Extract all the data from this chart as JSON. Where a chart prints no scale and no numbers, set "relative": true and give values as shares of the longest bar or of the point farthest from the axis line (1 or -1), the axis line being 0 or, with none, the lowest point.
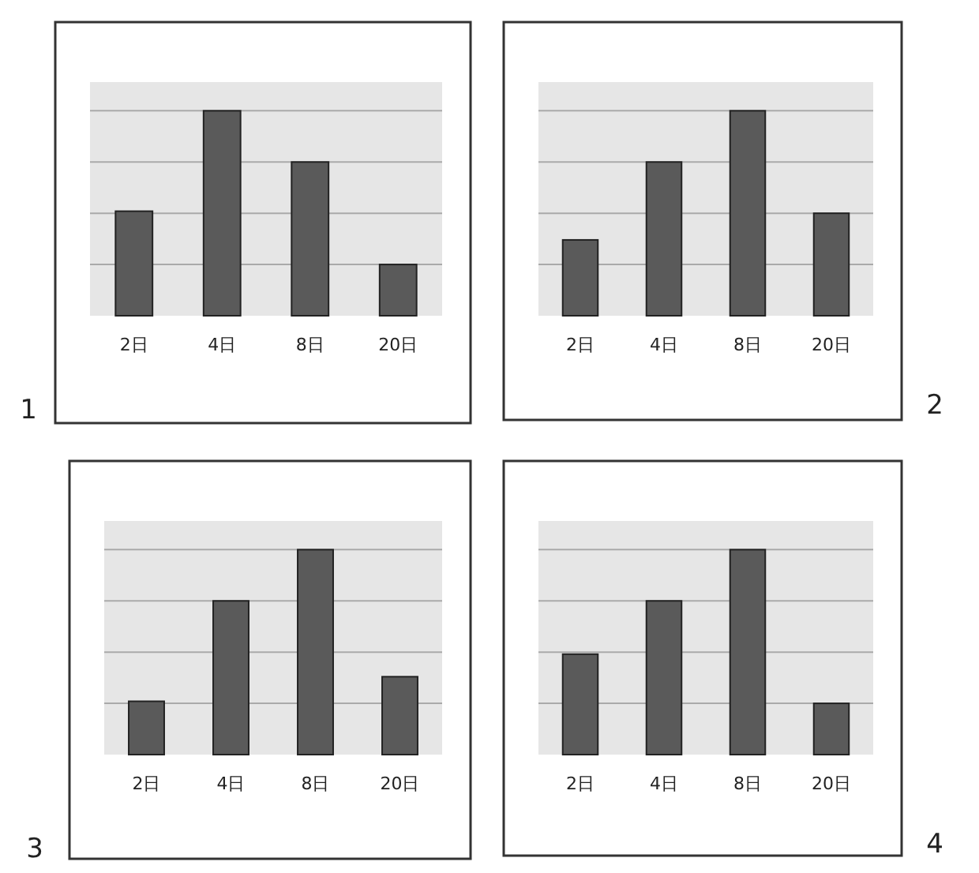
{
  "chart_data": [
    {
      "type": "bar",
      "relative": true,
      "grid": "y",
      "categories": [
        "2日",
        "4日",
        "8日",
        "20日"
      ],
      "values": [
        0.51,
        1,
        0.75,
        0.25
      ],
      "color": "#5a5a5a",
      "annotations": [
        "1"
      ]
    },
    {
      "type": "bar",
      "relative": true,
      "grid": "y",
      "categories": [
        "2日",
        "4日",
        "8日",
        "20日"
      ],
      "values": [
        0.37,
        0.75,
        1,
        0.5
      ],
      "color": "#5a5a5a",
      "annotations": [
        "2"
      ]
    },
    {
      "type": "bar",
      "relative": true,
      "grid": "y",
      "categories": [
        "2日",
        "4日",
        "8日",
        "20日"
      ],
      "values": [
        0.26,
        0.75,
        1,
        0.38
      ],
      "color": "#5a5a5a",
      "annotations": [
        "3"
      ]
    },
    {
      "type": "bar",
      "relative": true,
      "grid": "y",
      "categories": [
        "2日",
        "4日",
        "8日",
        "20日"
      ],
      "values": [
        0.49,
        0.75,
        1,
        0.25
      ],
      "color": "#5a5a5a",
      "annotations": [
        "4"
      ]
    }
  ]
}
